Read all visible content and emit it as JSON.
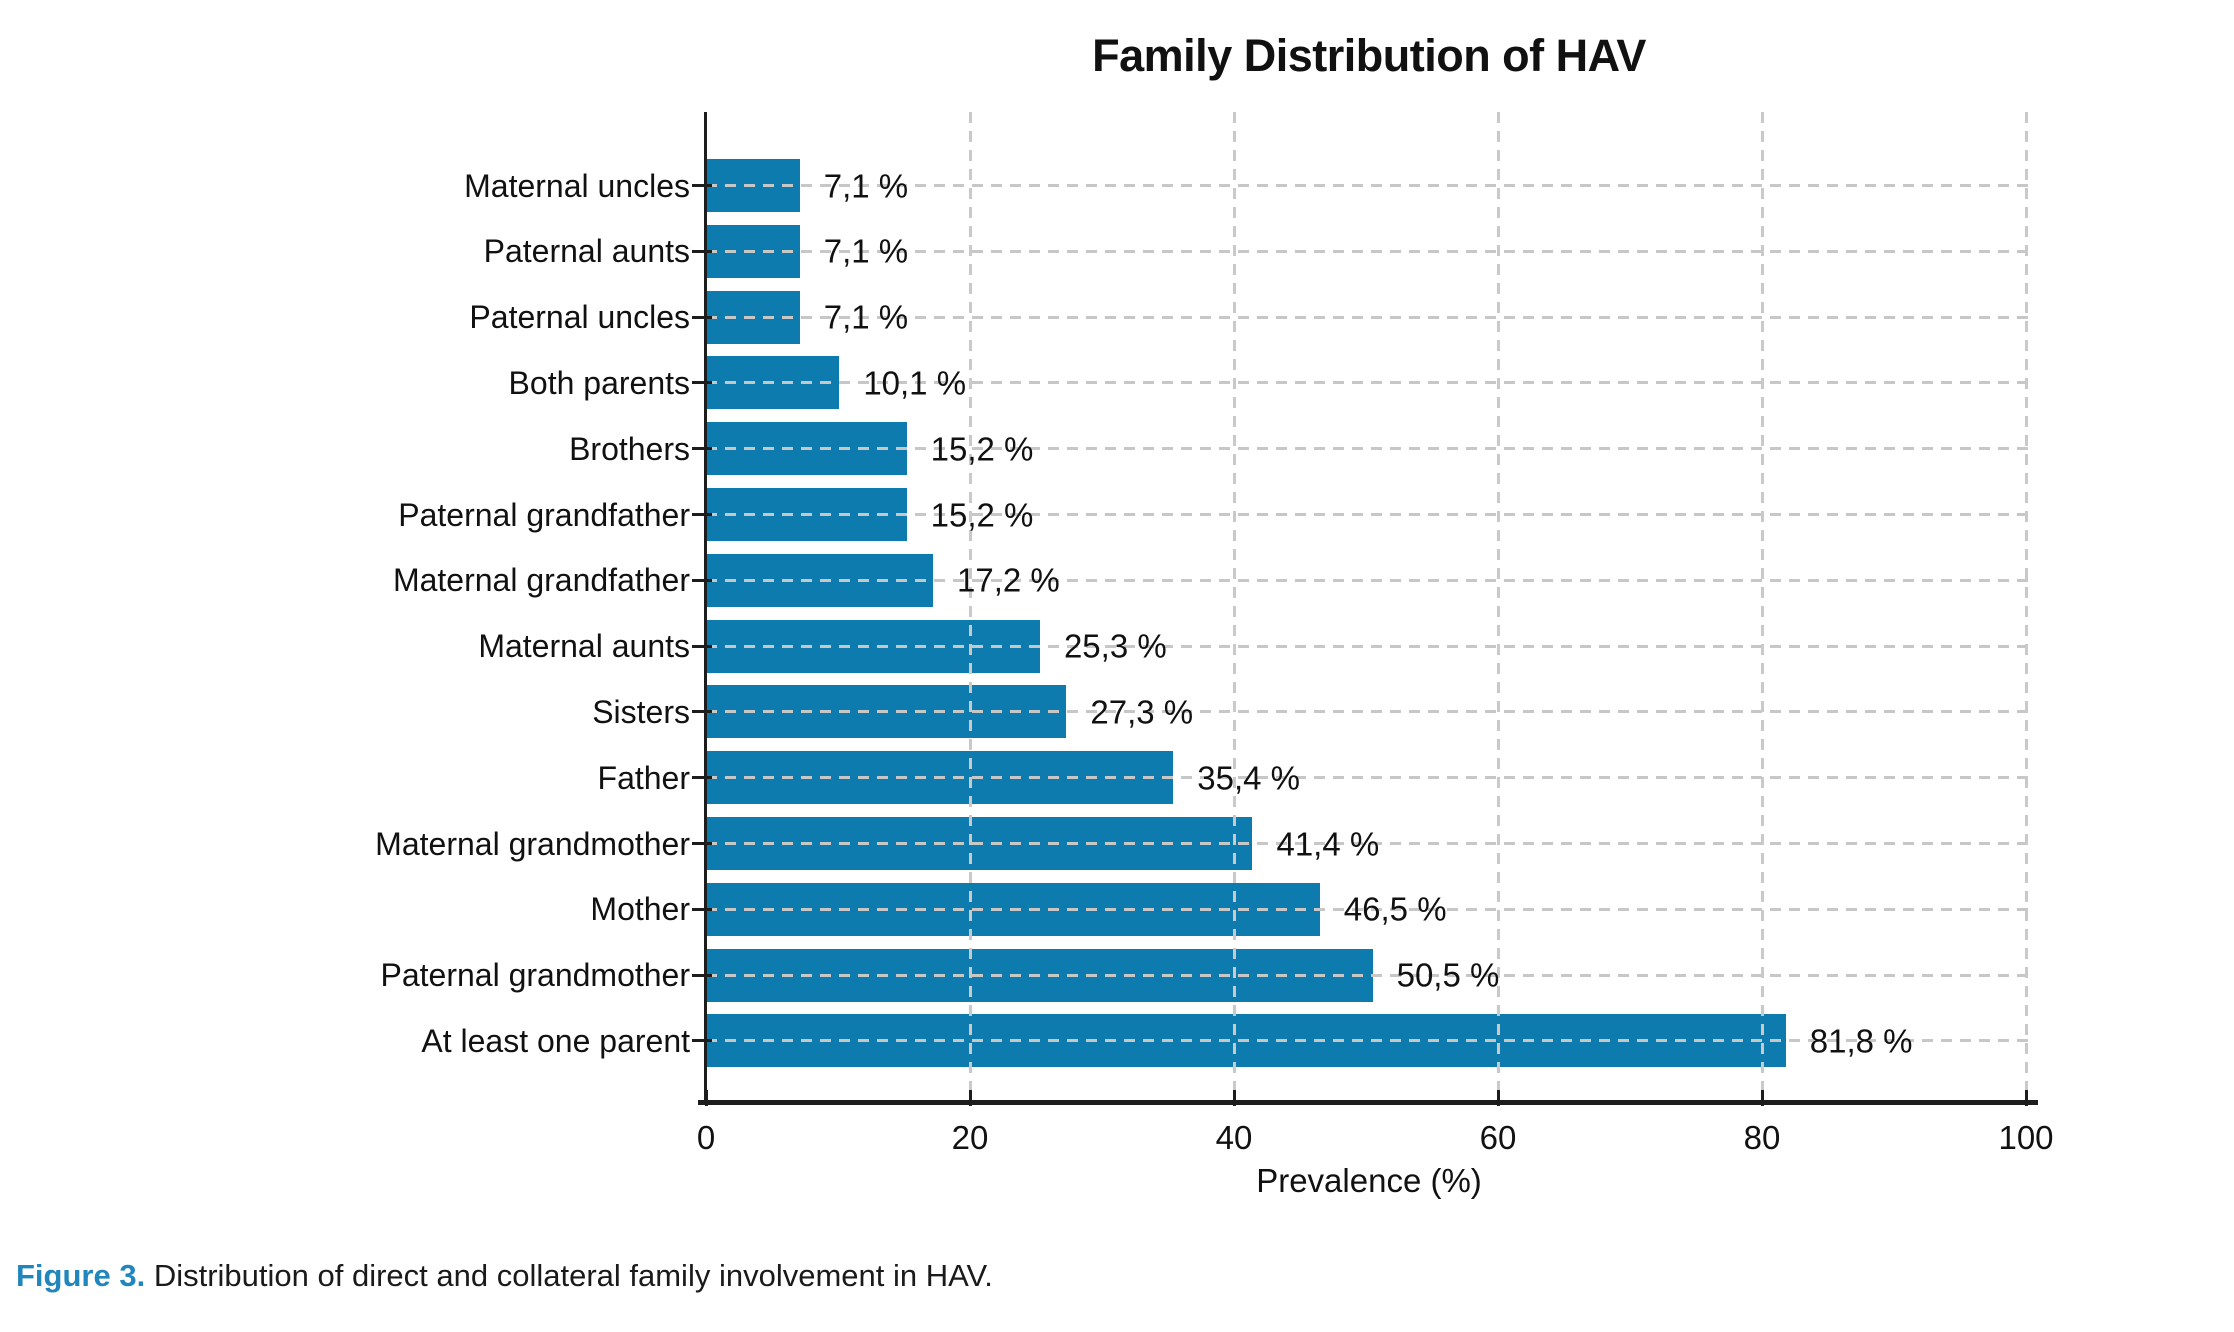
{
  "title": "Family Distribution of HAV",
  "caption": {
    "label": "Figure 3.",
    "text": " Distribution of direct and collateral family involvement in HAV."
  },
  "chart_data": {
    "type": "bar",
    "orientation": "horizontal",
    "title": "Family Distribution of HAV",
    "xlabel": "Prevalence (%)",
    "ylabel": "",
    "xlim": [
      0,
      100
    ],
    "xticks": [
      "0",
      "20",
      "40",
      "60",
      "80",
      "100"
    ],
    "xtick_values": [
      0,
      20,
      40,
      60,
      80,
      100
    ],
    "grid": "dashed, horizontal per category and vertical per tick, drawn over bars",
    "legend": "none",
    "bar_color": "#0e7bae",
    "categories_top_to_bottom": [
      "Maternal uncles",
      "Paternal aunts",
      "Paternal uncles",
      "Both parents",
      "Brothers",
      "Paternal grandfather",
      "Maternal grandfather",
      "Maternal aunts",
      "Sisters",
      "Father",
      "Maternal grandmother",
      "Mother",
      "Paternal grandmother",
      "At least one parent"
    ],
    "values": [
      7.1,
      7.1,
      7.1,
      10.1,
      15.2,
      15.2,
      17.2,
      25.3,
      27.3,
      35.4,
      41.4,
      46.5,
      50.5,
      81.8
    ],
    "value_labels": [
      "7,1 %",
      "7,1 %",
      "7,1 %",
      "10,1 %",
      "15,2 %",
      "15,2 %",
      "17,2 %",
      "25,3 %",
      "27,3 %",
      "35,4 %",
      "41,4 %",
      "46,5 %",
      "50,5 %",
      "81,8 %"
    ]
  },
  "colors": {
    "bar": "#0e7bae",
    "gridline": "#c8c8c8",
    "axis": "#1d1d1d",
    "text": "#111111",
    "caption_accent": "#2186bc",
    "background": "#ffffff"
  }
}
